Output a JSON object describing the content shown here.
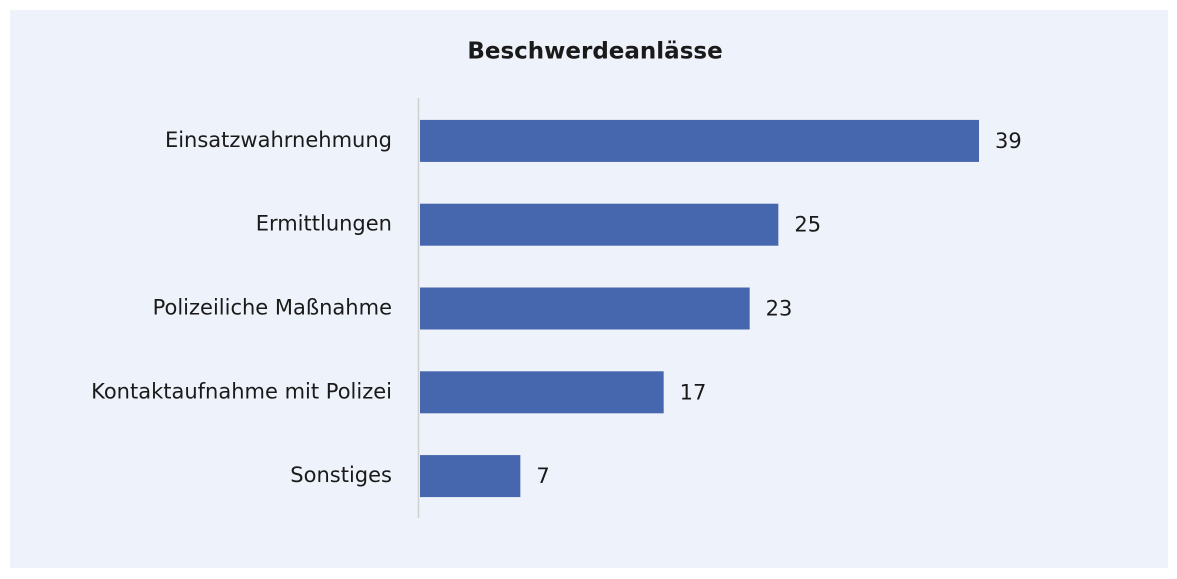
{
  "chart_data": {
    "type": "bar",
    "orientation": "horizontal",
    "title": "Beschwerdeanlässe",
    "categories": [
      "Einsatzwahrnehmung",
      "Ermittlungen",
      "Polizeiliche Maßnahme",
      "Kontaktaufnahme mit Polizei",
      "Sonstiges"
    ],
    "values": [
      39,
      25,
      23,
      17,
      7
    ],
    "color": "#4666ad"
  }
}
